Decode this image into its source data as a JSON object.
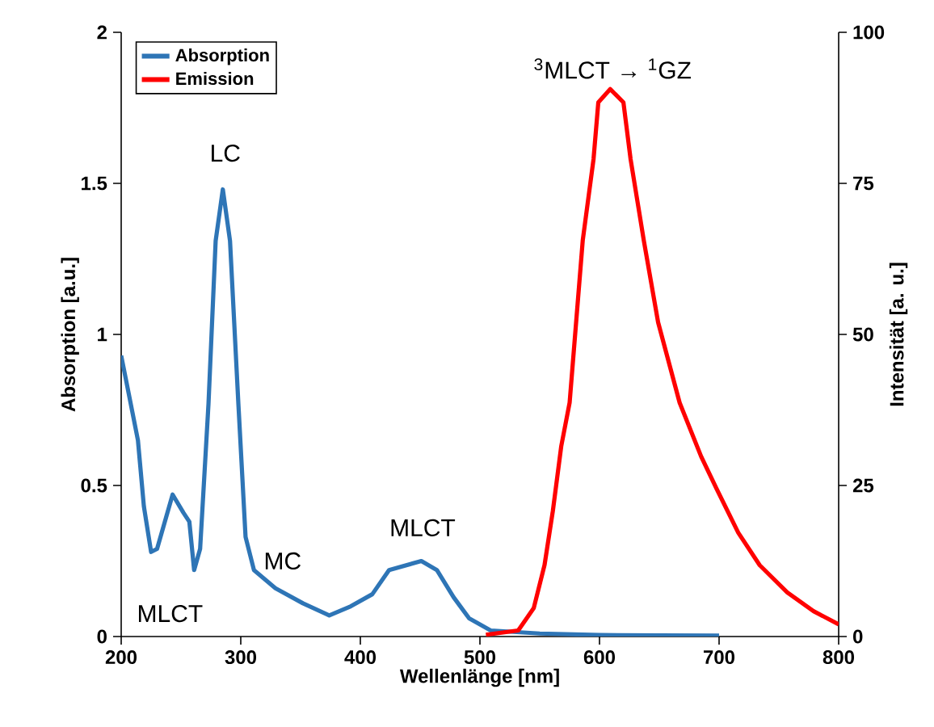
{
  "chart_data": {
    "type": "line",
    "xlabel": "Wellenlänge [nm]",
    "ylabel": "Absorption [a.u.]",
    "y2label": "Intensität [a. u.]",
    "xlim": [
      200,
      800
    ],
    "xticks": [
      200,
      300,
      400,
      500,
      600,
      700,
      800
    ],
    "ylim": [
      0,
      2
    ],
    "yticks": [
      0,
      0.5,
      1,
      1.5,
      2
    ],
    "y2lim": [
      0,
      100
    ],
    "y2ticks": [
      0,
      25,
      50,
      75,
      100
    ],
    "legend": "top left",
    "grid": false,
    "marker": "none",
    "line_style": "solid",
    "series": [
      {
        "name": "Absorption",
        "color": "#2e75b6",
        "x": [
          200,
          207,
          214,
          219,
          225,
          230,
          243,
          252,
          257,
          261,
          266,
          273,
          279,
          285,
          291,
          298,
          304,
          311,
          329,
          352,
          374,
          392,
          410,
          424,
          451,
          464,
          478,
          491,
          509,
          550,
          600,
          650,
          700
        ],
        "values": [
          0.93,
          0.79,
          0.65,
          0.43,
          0.28,
          0.29,
          0.47,
          0.41,
          0.38,
          0.22,
          0.29,
          0.77,
          1.31,
          1.48,
          1.31,
          0.77,
          0.33,
          0.22,
          0.16,
          0.11,
          0.07,
          0.1,
          0.14,
          0.22,
          0.25,
          0.22,
          0.13,
          0.06,
          0.02,
          0.01,
          0.005,
          0.004,
          0.003
        ]
      },
      {
        "name": "Emission",
        "color": "#ff0000",
        "axis": "y2",
        "x": [
          505,
          532,
          545,
          554,
          561,
          568,
          575,
          586,
          595,
          599,
          609,
          620,
          626,
          637,
          649,
          667,
          685,
          698,
          716,
          734,
          757,
          779,
          800
        ],
        "values": [
          0.3,
          1,
          4.7,
          11.8,
          20.8,
          31.5,
          38.7,
          65.6,
          79,
          88.4,
          90.6,
          88.4,
          79,
          65.6,
          52,
          38.7,
          29.8,
          24.4,
          17.2,
          11.8,
          7.3,
          4.2,
          2
        ]
      }
    ],
    "annotations": [
      "LC",
      "MC",
      "MLCT",
      "MLCT",
      "$^{3}$MLCT → $^{1}$GZ"
    ]
  }
}
